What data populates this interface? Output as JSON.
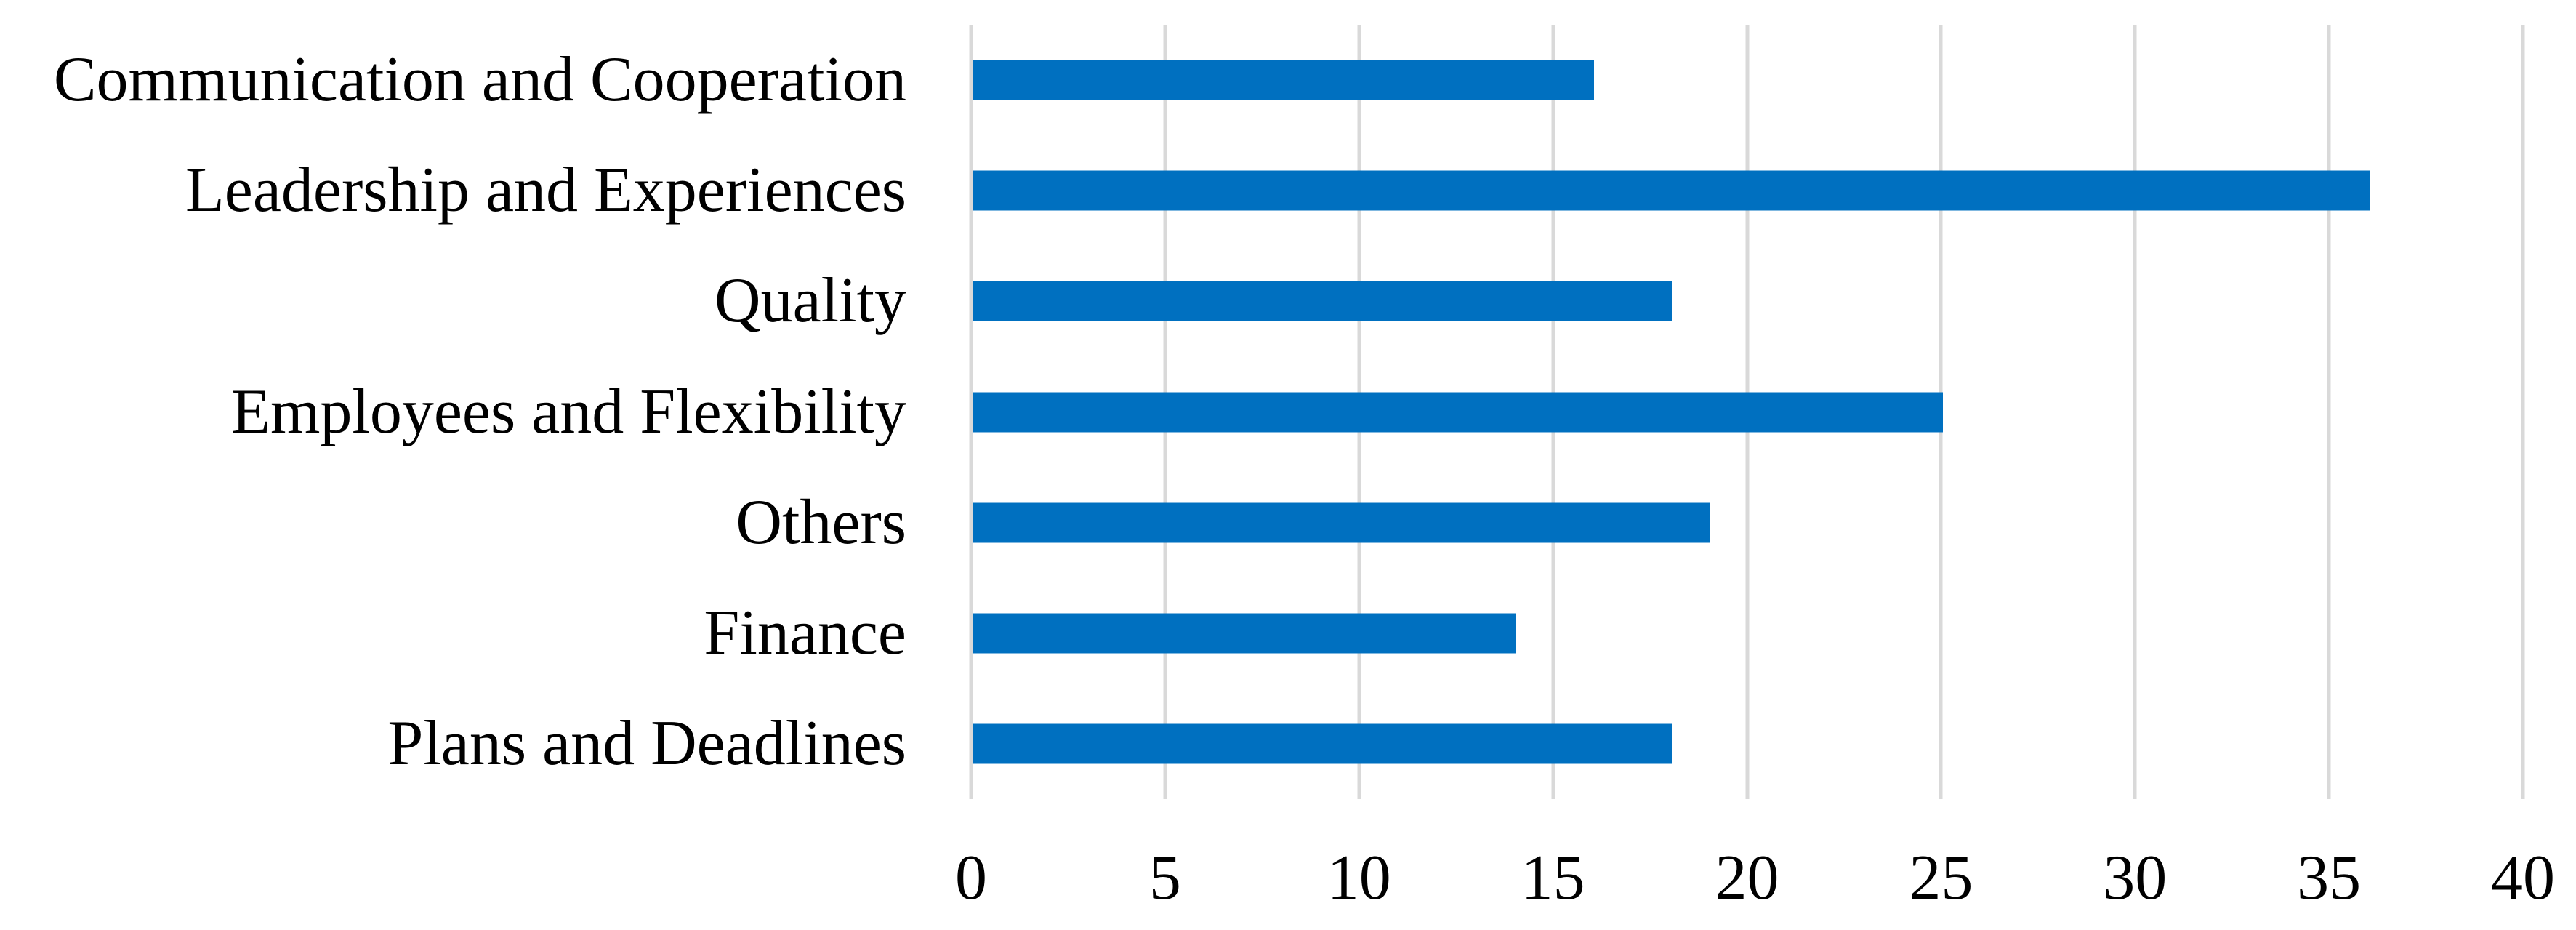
{
  "figure": {
    "background_color": "#ffffff",
    "text_color": "#000000"
  },
  "chart_data": {
    "type": "bar",
    "orientation": "horizontal",
    "title": "",
    "xlabel": "",
    "ylabel": "",
    "categories": [
      "Communication and Cooperation",
      "Leadership and Experiences",
      "Quality",
      "Employees and Flexibility",
      "Others",
      "Finance",
      "Plans and Deadlines"
    ],
    "values": [
      16,
      36,
      18,
      25,
      19,
      14,
      18
    ],
    "xlim": [
      0,
      40
    ],
    "xticks": [
      0,
      5,
      10,
      15,
      20,
      25,
      30,
      35,
      40
    ],
    "grid": "vertical-only",
    "legend": "none",
    "bar_color": "#0070C0",
    "gridline_color": "#D9D9D9"
  }
}
